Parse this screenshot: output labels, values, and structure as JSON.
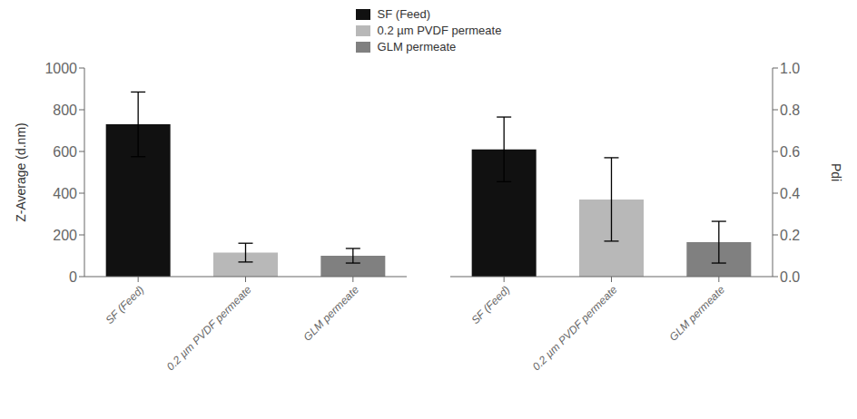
{
  "chart_data": [
    {
      "type": "bar",
      "categories": [
        "SF (Feed)",
        "0.2 µm PVDF permeate",
        "GLM permeate"
      ],
      "values": [
        730,
        115,
        100
      ],
      "errors": [
        155,
        45,
        35
      ],
      "colors": [
        "#111111",
        "#b8b8b8",
        "#808080"
      ],
      "ylabel": "Z-Average (d.nm)",
      "ylim": [
        0,
        1000
      ],
      "yticks": [
        0,
        200,
        400,
        600,
        800,
        1000
      ],
      "legend": "top"
    },
    {
      "type": "bar",
      "categories": [
        "SF (Feed)",
        "0.2 µm PVDF permeate",
        "GLM permeate"
      ],
      "values": [
        0.61,
        0.37,
        0.165
      ],
      "errors": [
        0.155,
        0.2,
        0.1
      ],
      "colors": [
        "#111111",
        "#b8b8b8",
        "#808080"
      ],
      "ylabel": "Pdi",
      "ylim": [
        0.0,
        1.0
      ],
      "yticks": [
        {
          "value": 0,
          "label": "0.0"
        },
        0.2,
        0.4,
        0.6,
        0.8,
        {
          "value": 1,
          "label": "1.0"
        }
      ]
    }
  ]
}
